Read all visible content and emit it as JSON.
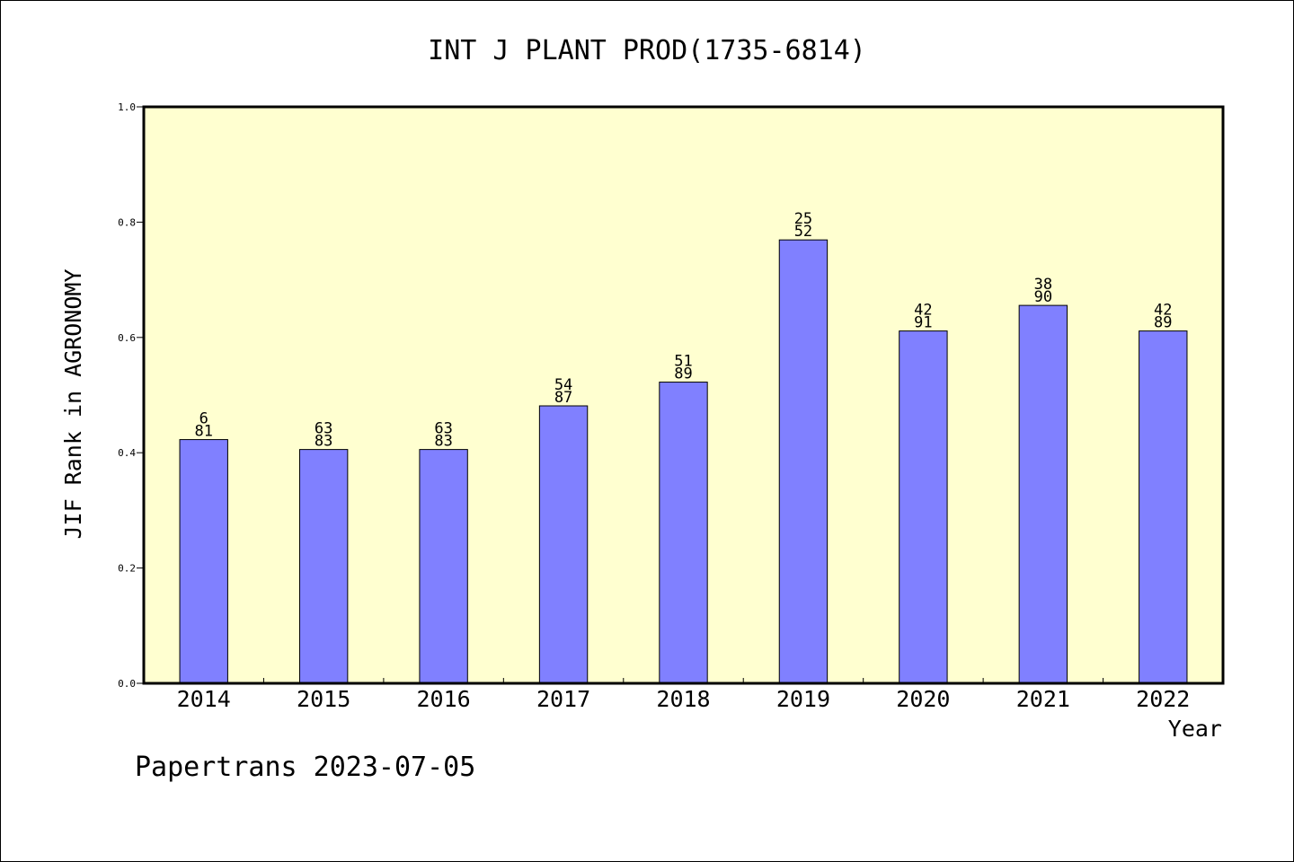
{
  "chart_data": {
    "type": "bar",
    "title": "INT J PLANT PROD(1735-6814)",
    "xlabel": "Year",
    "ylabel": "JIF Rank in AGRONOMY",
    "ylim": [
      0,
      1.0
    ],
    "yticks": [
      "0.0",
      "0.2",
      "0.4",
      "0.6",
      "0.8",
      "1.0"
    ],
    "categories": [
      "2014",
      "2015",
      "2016",
      "2017",
      "2018",
      "2019",
      "2020",
      "2021",
      "2022"
    ],
    "values": [
      0.4228,
      0.4056,
      0.4056,
      0.4813,
      0.5225,
      0.7692,
      0.6112,
      0.6556,
      0.6112
    ],
    "rank_labels": [
      {
        "rank": "6",
        "total": "81"
      },
      {
        "rank": "63",
        "total": "83"
      },
      {
        "rank": "63",
        "total": "83"
      },
      {
        "rank": "54",
        "total": "87"
      },
      {
        "rank": "51",
        "total": "89"
      },
      {
        "rank": "25",
        "total": "52"
      },
      {
        "rank": "42",
        "total": "91"
      },
      {
        "rank": "38",
        "total": "90"
      },
      {
        "rank": "42",
        "total": "89"
      }
    ],
    "grid": false,
    "colors": {
      "plot_background": "#ffffd0",
      "bar_fill": "#8080ff",
      "bar_stroke": "#000000"
    }
  },
  "footer": {
    "text": "Papertrans 2023-07-05"
  }
}
